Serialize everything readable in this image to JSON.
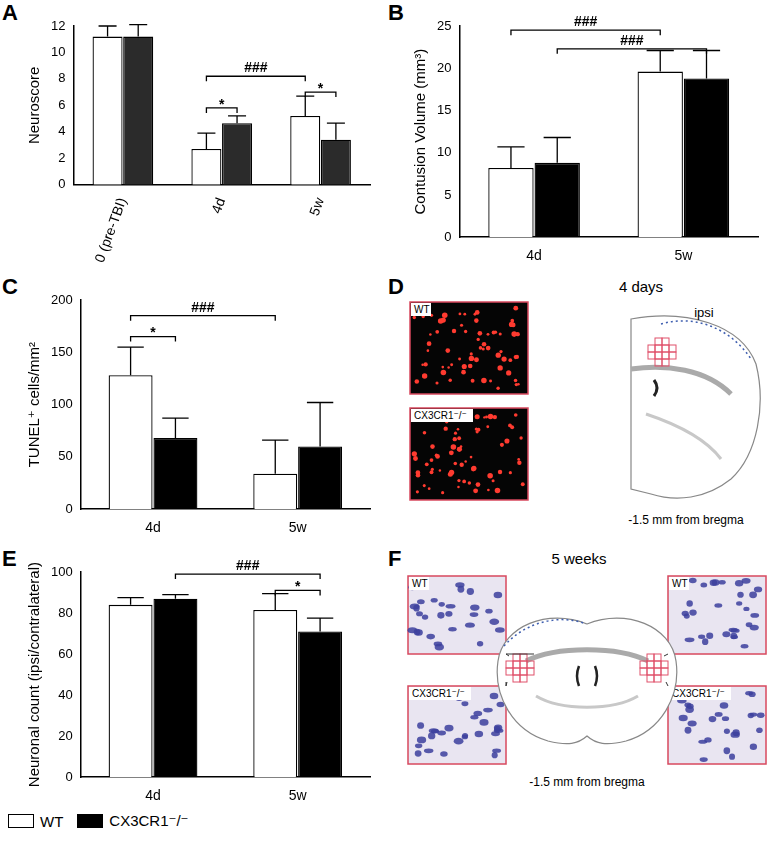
{
  "chart_data": [
    {
      "panel": "A",
      "type": "bar",
      "y_label": "Neuroscore",
      "categories": [
        "0 (pre-TBI)",
        "4d",
        "5w"
      ],
      "series": [
        {
          "name": "WT",
          "color": "#ffffff",
          "values": [
            11.2,
            2.7,
            5.2
          ],
          "errors": [
            0.8,
            1.2,
            1.5
          ]
        },
        {
          "name": "CX3CR1⁻/⁻",
          "color": "#2b2b2b",
          "values": [
            11.2,
            4.65,
            3.4
          ],
          "errors": [
            0.9,
            0.55,
            1.25
          ]
        }
      ],
      "ylim": [
        0,
        12
      ],
      "yticks": [
        0,
        2,
        4,
        6,
        8,
        10,
        12
      ],
      "grid": false,
      "annotations": [
        {
          "text": "###",
          "start": {
            "category": 1,
            "series": 0
          },
          "end": {
            "category": 2,
            "series": 0
          },
          "y": 8.2
        },
        {
          "text": "*",
          "start": {
            "category": 1,
            "series": 0
          },
          "end": {
            "category": 1,
            "series": 1
          },
          "y": 5.8
        },
        {
          "text": "*",
          "start": {
            "category": 2,
            "series": 0
          },
          "end": {
            "category": 2,
            "series": 1
          },
          "y": 7.0
        }
      ]
    },
    {
      "panel": "B",
      "type": "bar",
      "y_label": "Contusion Volume (mm³)",
      "categories": [
        "4d",
        "5w"
      ],
      "series": [
        {
          "name": "WT",
          "color": "#ffffff",
          "values": [
            8.2,
            19.6
          ],
          "errors": [
            2.5,
            2.5
          ]
        },
        {
          "name": "CX3CR1⁻/⁻",
          "color": "#000000",
          "values": [
            8.8,
            18.8
          ],
          "errors": [
            3.0,
            3.3
          ]
        }
      ],
      "ylim": [
        0,
        25
      ],
      "yticks": [
        0,
        5,
        10,
        15,
        20,
        25
      ],
      "grid": false,
      "annotations": [
        {
          "text": "###",
          "start": {
            "category": 0,
            "series": 0
          },
          "end": {
            "category": 1,
            "series": 0
          },
          "y": 24.5
        },
        {
          "text": "###",
          "start": {
            "category": 0,
            "series": 1
          },
          "end": {
            "category": 1,
            "series": 1
          },
          "y": 22.3
        }
      ]
    },
    {
      "panel": "C",
      "type": "bar",
      "y_label": "TUNEL⁺ cells/mm²",
      "categories": [
        "4d",
        "5w"
      ],
      "series": [
        {
          "name": "WT",
          "color": "#ffffff",
          "values": [
            128,
            34
          ],
          "errors": [
            27,
            32
          ]
        },
        {
          "name": "CX3CR1⁻/⁻",
          "color": "#000000",
          "values": [
            68,
            60
          ],
          "errors": [
            19,
            42
          ]
        }
      ],
      "ylim": [
        0,
        200
      ],
      "yticks": [
        0,
        50,
        100,
        150,
        200
      ],
      "grid": false,
      "annotations": [
        {
          "text": "###",
          "start": {
            "category": 0,
            "series": 0
          },
          "end": {
            "category": 1,
            "series": 0
          },
          "y": 185
        },
        {
          "text": "*",
          "start": {
            "category": 0,
            "series": 0
          },
          "end": {
            "category": 0,
            "series": 1
          },
          "y": 165
        }
      ]
    },
    {
      "panel": "E",
      "type": "bar",
      "y_label": "Neuronal count (ipsi/contralateral)",
      "categories": [
        "4d",
        "5w"
      ],
      "series": [
        {
          "name": "WT",
          "color": "#ffffff",
          "values": [
            84,
            81.5
          ],
          "errors": [
            3.5,
            8
          ]
        },
        {
          "name": "CX3CR1⁻/⁻",
          "color": "#000000",
          "values": [
            87,
            71
          ],
          "errors": [
            2,
            6.5
          ]
        }
      ],
      "ylim": [
        0,
        100
      ],
      "yticks": [
        0,
        20,
        40,
        60,
        80,
        100
      ],
      "grid": false,
      "annotations": [
        {
          "text": "###",
          "start": {
            "category": 0,
            "series": 1
          },
          "end": {
            "category": 1,
            "series": 1
          },
          "y": 99
        },
        {
          "text": "*",
          "start": {
            "category": 1,
            "series": 0
          },
          "end": {
            "category": 1,
            "series": 1
          },
          "y": 91
        }
      ]
    }
  ],
  "panels": [
    {
      "panel": "D",
      "title": "4 days",
      "images": [
        "WT",
        "CX3CR1⁻/⁻"
      ],
      "region_label": "ipsi",
      "caption": "-1.5 mm from bregma"
    },
    {
      "panel": "F",
      "title": "5 weeks",
      "images": [
        "WT",
        "CX3CR1⁻/⁻",
        "WT",
        "CX3CR1⁻/⁻"
      ],
      "caption": "-1.5 mm from bregma"
    }
  ],
  "figure_legend": [
    {
      "name": "WT",
      "color": "#ffffff"
    },
    {
      "name": "CX3CR1⁻/⁻",
      "color": "#000000"
    }
  ]
}
